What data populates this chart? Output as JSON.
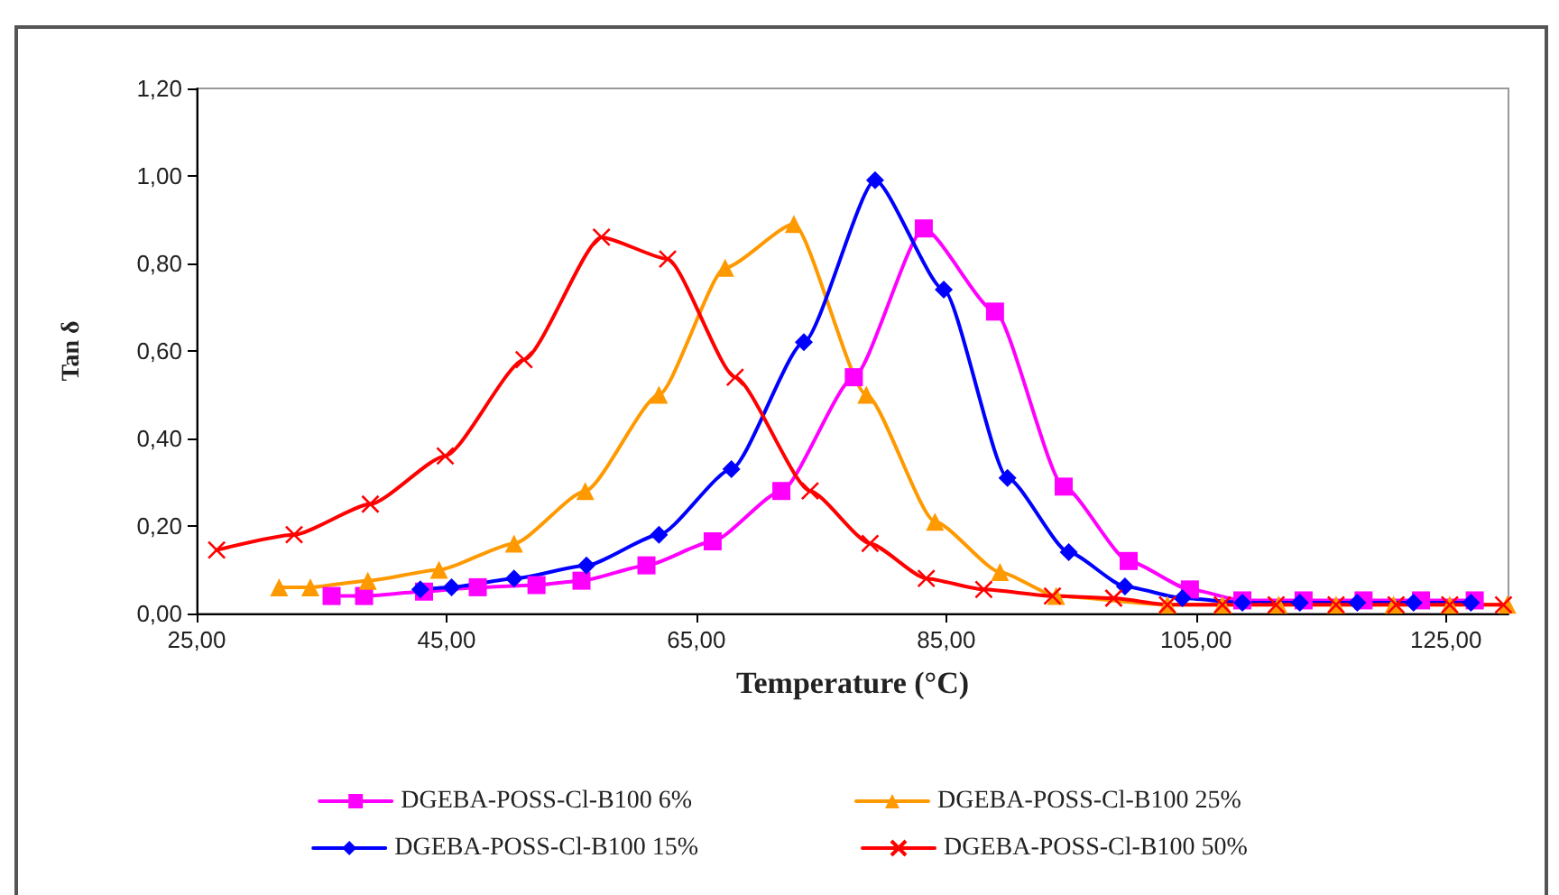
{
  "chart_data": {
    "type": "line",
    "xlabel": "Temperature (°C)",
    "ylabel": "Tan δ",
    "xlim": [
      25,
      130
    ],
    "xticks": [
      {
        "value": 25,
        "label": "25,00"
      },
      {
        "value": 45,
        "label": "45,00"
      },
      {
        "value": 65,
        "label": "65,00"
      },
      {
        "value": 85,
        "label": "85,00"
      },
      {
        "value": 105,
        "label": "105,00"
      },
      {
        "value": 125,
        "label": "125,00"
      }
    ],
    "ylim": [
      0,
      1.2
    ],
    "yticks": [
      {
        "value": 0,
        "label": "0,00"
      },
      {
        "value": 0.2,
        "label": "0,20"
      },
      {
        "value": 0.4,
        "label": "0,40"
      },
      {
        "value": 0.6,
        "label": "0,60"
      },
      {
        "value": 0.8,
        "label": "0,80"
      },
      {
        "value": 1,
        "label": "1,00"
      },
      {
        "value": 1.2,
        "label": "1,20"
      }
    ],
    "grid": false,
    "legend": "bottom",
    "line_style": "solid",
    "series": [
      {
        "name": "DGEBA-POSS-Cl-B100 6%",
        "color": "#ff00ff",
        "marker": "square",
        "x": [
          35.8,
          38.4,
          43.2,
          47.5,
          52.2,
          55.8,
          61,
          66.3,
          71.8,
          77.6,
          83.2,
          88.9,
          94.4,
          99.6,
          104.5,
          108.7,
          113.6,
          118.4,
          123,
          127.3
        ],
        "values": [
          0.04,
          0.04,
          0.05,
          0.06,
          0.065,
          0.075,
          0.11,
          0.165,
          0.28,
          0.54,
          0.88,
          0.69,
          0.29,
          0.12,
          0.055,
          0.03,
          0.03,
          0.03,
          0.03,
          0.03
        ]
      },
      {
        "name": "DGEBA-POSS-Cl-B100 25%",
        "color": "#ff9900",
        "marker": "triangle",
        "x": [
          31.6,
          34.1,
          38.7,
          44.4,
          50.4,
          56.1,
          62,
          67.3,
          72.8,
          78.6,
          84.1,
          89.3,
          93.8,
          102.7,
          107.1,
          111.6,
          116.2,
          120.8,
          125.3,
          129.9
        ],
        "values": [
          0.06,
          0.06,
          0.075,
          0.1,
          0.16,
          0.28,
          0.5,
          0.79,
          0.89,
          0.5,
          0.21,
          0.095,
          0.04,
          0.02,
          0.02,
          0.02,
          0.02,
          0.02,
          0.02,
          0.02
        ]
      },
      {
        "name": "DGEBA-POSS-Cl-B100 15%",
        "color": "#0000ff",
        "marker": "diamond",
        "x": [
          42.9,
          45.4,
          50.4,
          56.2,
          62,
          67.8,
          73.6,
          79.3,
          84.8,
          89.9,
          94.8,
          99.3,
          103.9,
          108.7,
          113.3,
          117.9,
          122.4,
          127
        ],
        "values": [
          0.055,
          0.06,
          0.08,
          0.11,
          0.18,
          0.33,
          0.62,
          0.99,
          0.74,
          0.31,
          0.14,
          0.062,
          0.035,
          0.025,
          0.025,
          0.025,
          0.025,
          0.025
        ]
      },
      {
        "name": "DGEBA-POSS-Cl-B100 50%",
        "color": "#ff0000",
        "marker": "cross",
        "x": [
          26.6,
          32.8,
          38.9,
          44.9,
          51.2,
          57.4,
          62.7,
          68.1,
          74.1,
          78.9,
          83.4,
          88,
          93.5,
          98.4,
          102.7,
          107.1,
          111.4,
          116.2,
          121,
          125.3,
          129.6
        ],
        "values": [
          0.145,
          0.18,
          0.25,
          0.36,
          0.58,
          0.86,
          0.81,
          0.54,
          0.28,
          0.16,
          0.08,
          0.055,
          0.04,
          0.035,
          0.02,
          0.02,
          0.02,
          0.02,
          0.02,
          0.02,
          0.02
        ]
      }
    ]
  }
}
